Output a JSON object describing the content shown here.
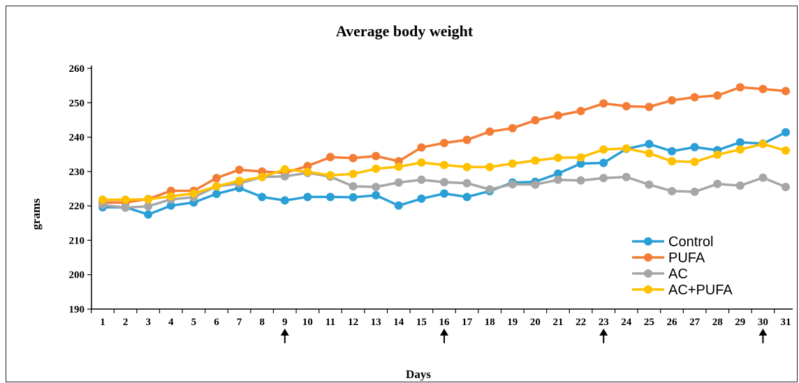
{
  "chart_data": {
    "type": "line",
    "title": "Average body weight",
    "xlabel": "Days",
    "ylabel": "grams",
    "ylim": [
      190,
      260
    ],
    "yticks": [
      190,
      200,
      210,
      220,
      230,
      240,
      250,
      260
    ],
    "x": [
      1,
      2,
      3,
      4,
      5,
      6,
      7,
      8,
      9,
      10,
      11,
      12,
      13,
      14,
      15,
      16,
      17,
      18,
      19,
      20,
      21,
      22,
      23,
      24,
      25,
      26,
      27,
      28,
      29,
      30,
      31
    ],
    "arrow_days": [
      9,
      16,
      23,
      30
    ],
    "grid": false,
    "legend_position": "bottom-right",
    "series": [
      {
        "name": "Control",
        "color": "#2a9fd6",
        "values": [
          219.6,
          219.6,
          217.5,
          220.1,
          221.0,
          223.5,
          225.2,
          222.6,
          221.6,
          222.6,
          222.6,
          222.5,
          223.1,
          220.1,
          222.1,
          223.6,
          222.6,
          224.3,
          226.8,
          227.0,
          229.4,
          232.3,
          232.5,
          236.6,
          238.0,
          235.9,
          237.1,
          236.2,
          238.5,
          238.1,
          241.4
        ]
      },
      {
        "name": "PUFA",
        "color": "#f47c35",
        "values": [
          221.0,
          221.0,
          222.0,
          224.4,
          224.4,
          228.1,
          230.5,
          230.0,
          229.6,
          231.6,
          234.2,
          233.9,
          234.5,
          233.0,
          237.0,
          238.3,
          239.2,
          241.6,
          242.6,
          244.9,
          246.3,
          247.6,
          249.8,
          249.0,
          248.8,
          250.7,
          251.6,
          252.1,
          254.5,
          254.0,
          253.4
        ]
      },
      {
        "name": "AC",
        "color": "#a6a6a6",
        "values": [
          220.3,
          219.5,
          219.9,
          221.9,
          222.5,
          225.7,
          226.5,
          228.4,
          228.6,
          229.6,
          228.5,
          225.7,
          225.5,
          226.8,
          227.6,
          226.9,
          226.6,
          224.8,
          226.3,
          226.2,
          227.6,
          227.4,
          228.1,
          228.4,
          226.2,
          224.3,
          224.1,
          226.4,
          225.9,
          228.2,
          225.5
        ]
      },
      {
        "name": "AC+PUFA",
        "color": "#ffc000",
        "values": [
          221.8,
          221.8,
          221.9,
          222.8,
          223.6,
          225.7,
          227.3,
          228.4,
          230.6,
          229.9,
          228.9,
          229.3,
          230.8,
          231.4,
          232.6,
          231.9,
          231.3,
          231.3,
          232.3,
          233.2,
          234.0,
          234.1,
          236.4,
          236.7,
          235.3,
          233.0,
          232.8,
          234.9,
          236.4,
          238.0,
          236.1
        ]
      }
    ]
  }
}
